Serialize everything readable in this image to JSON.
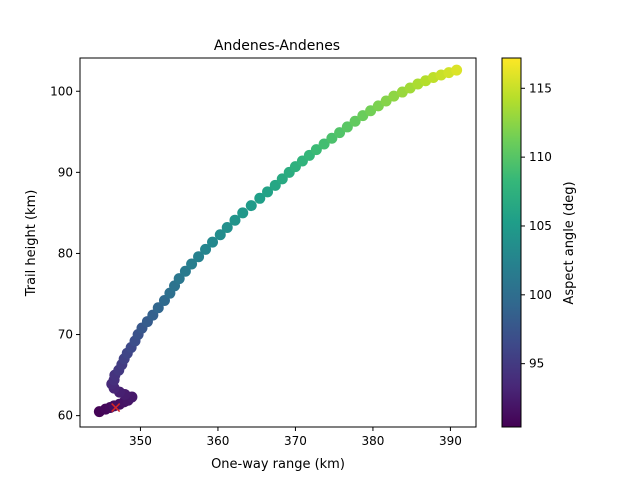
{
  "chart_data": {
    "type": "scatter",
    "title": "Andenes-Andenes",
    "xlabel": "One-way range (km)",
    "ylabel": "Trail height (km)",
    "xlim": [
      342.2,
      393.3
    ],
    "ylim": [
      58.6,
      104.1
    ],
    "xticks": [
      350,
      360,
      370,
      380,
      390
    ],
    "yticks": [
      60,
      70,
      80,
      90,
      100
    ],
    "grid": false,
    "colorbar": {
      "label": "Aspect angle (deg)",
      "range": [
        90.4,
        117.2
      ],
      "ticks": [
        95,
        100,
        105,
        110,
        115
      ],
      "colormap": "viridis",
      "stops": [
        "#440154",
        "#482878",
        "#3e4989",
        "#31688e",
        "#26828e",
        "#1f9e89",
        "#35b779",
        "#6ece58",
        "#b5de2b",
        "#fde725"
      ]
    },
    "series": [
      {
        "x": [
          344.7,
          345.5,
          346.1,
          346.6,
          347.3,
          347.9,
          348.4,
          348.9,
          348.0,
          347.3,
          346.6,
          346.3,
          346.6,
          346.7,
          347.2,
          347.6,
          347.9,
          348.3,
          348.8,
          349.3,
          349.7,
          350.2,
          350.9,
          351.6,
          352.3,
          353.1,
          353.8,
          354.4,
          355.0,
          355.8,
          356.6,
          357.5,
          358.4,
          359.3,
          360.3,
          361.2,
          362.2,
          363.2,
          364.3,
          365.4,
          366.4,
          367.4,
          368.3,
          369.2,
          370.0,
          370.9,
          371.8,
          372.7,
          373.7,
          374.7,
          375.7,
          376.7,
          377.7,
          378.7,
          379.7,
          380.7,
          381.7,
          382.7,
          383.8,
          384.8,
          385.8,
          386.8,
          387.8,
          388.8,
          389.8,
          390.8
        ],
        "y": [
          60.5,
          60.8,
          61.0,
          61.2,
          61.4,
          61.7,
          61.9,
          62.3,
          62.6,
          62.9,
          63.4,
          63.9,
          64.4,
          65.0,
          65.6,
          66.3,
          67.0,
          67.7,
          68.4,
          69.2,
          70.0,
          70.8,
          71.6,
          72.4,
          73.3,
          74.2,
          75.1,
          76.0,
          76.9,
          77.8,
          78.7,
          79.6,
          80.5,
          81.4,
          82.3,
          83.2,
          84.1,
          85.0,
          85.9,
          86.8,
          87.6,
          88.4,
          89.2,
          90.0,
          90.7,
          91.4,
          92.1,
          92.8,
          93.5,
          94.2,
          94.9,
          95.6,
          96.3,
          97.0,
          97.6,
          98.2,
          98.8,
          99.4,
          99.9,
          100.4,
          100.9,
          101.3,
          101.7,
          102.0,
          102.3,
          102.6
        ],
        "c": [
          90.6,
          90.9,
          91.1,
          91.3,
          91.5,
          91.8,
          92.0,
          92.2,
          92.5,
          92.8,
          93.2,
          93.6,
          94.0,
          94.4,
          94.8,
          95.2,
          95.6,
          96.0,
          96.4,
          96.8,
          97.2,
          97.7,
          98.2,
          98.7,
          99.2,
          99.7,
          100.2,
          100.6,
          101.0,
          101.4,
          101.8,
          102.2,
          102.6,
          103.0,
          103.4,
          103.8,
          104.2,
          104.6,
          105.0,
          105.4,
          105.8,
          106.2,
          106.6,
          107.0,
          107.4,
          107.8,
          108.2,
          108.6,
          109.0,
          109.4,
          109.8,
          110.2,
          110.6,
          111.0,
          111.4,
          111.8,
          112.2,
          112.6,
          113.0,
          113.4,
          113.8,
          114.2,
          114.6,
          115.0,
          115.4,
          115.8
        ]
      }
    ],
    "marker": {
      "type": "x",
      "x": 346.8,
      "y": 61.0,
      "color": "#d62728"
    }
  }
}
